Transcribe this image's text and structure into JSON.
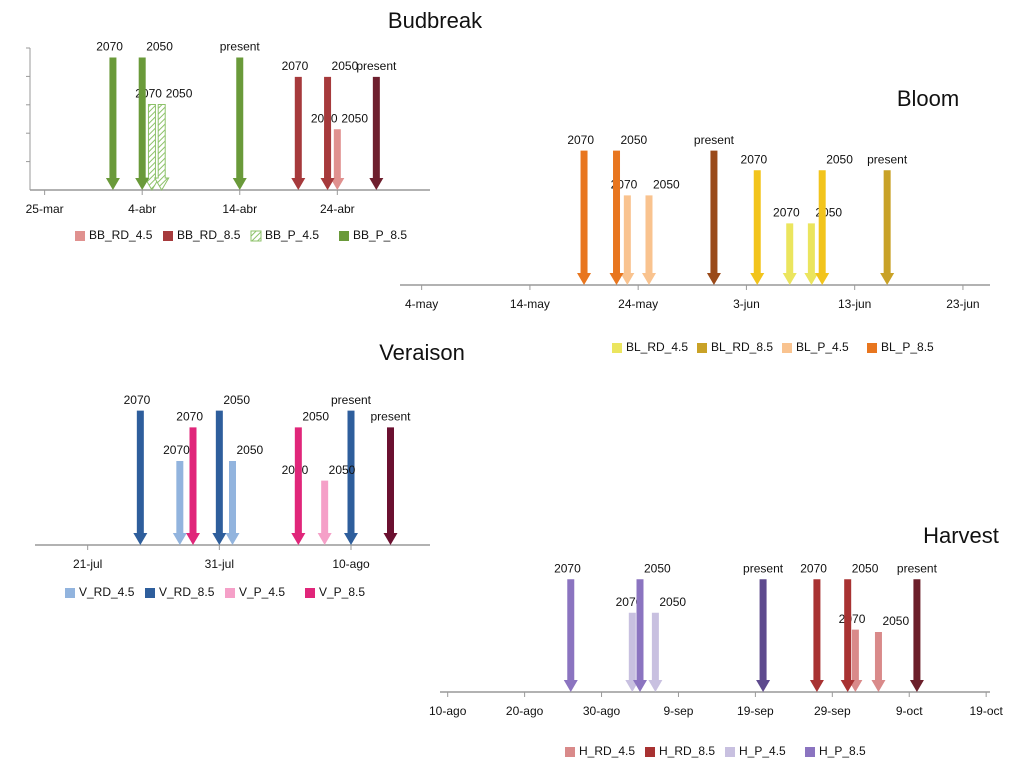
{
  "chart_data": [
    {
      "type": "arrow",
      "title": "Budbreak",
      "xlim": [
        82.5,
        123.5
      ],
      "ylim": [
        0,
        5
      ],
      "xticks": [
        {
          "value": 84,
          "label": "25-mar"
        },
        {
          "value": 94,
          "label": "4-abr"
        },
        {
          "value": 104,
          "label": "14-abr"
        },
        {
          "value": 114,
          "label": "24-abr"
        }
      ],
      "series": [
        {
          "name": "BB_RD_4.5",
          "color": "#e0918f",
          "x": [
            113,
            114
          ],
          "values": [
            2.2,
            2.2
          ],
          "labels": [
            "2070",
            "2050"
          ]
        },
        {
          "name": "BB_RD_8.5",
          "color": "#a63a3c",
          "x": [
            110,
            113,
            118
          ],
          "values": [
            4.1,
            4.1,
            4.1
          ],
          "labels": [
            "2070",
            "2050",
            "present"
          ],
          "colors": [
            "#a63a3c",
            "#a63a3c",
            "#6e1f2e"
          ]
        },
        {
          "name": "BB_P_4.5",
          "color": "#8dc26a",
          "pattern": "hatched",
          "x": [
            95,
            96
          ],
          "values": [
            3.1,
            3.1
          ],
          "labels": [
            "2070",
            "2050"
          ]
        },
        {
          "name": "BB_P_8.5",
          "color": "#6a9a3a",
          "x": [
            91,
            94,
            104
          ],
          "values": [
            4.8,
            4.8,
            4.8
          ],
          "labels": [
            "2070",
            "2050",
            "present"
          ]
        }
      ]
    },
    {
      "type": "arrow",
      "title": "Bloom",
      "xlim": [
        122,
        176.5
      ],
      "ylim": [
        0,
        5
      ],
      "xticks": [
        {
          "value": 124,
          "label": "4-may"
        },
        {
          "value": 134,
          "label": "14-may"
        },
        {
          "value": 144,
          "label": "24-may"
        },
        {
          "value": 154,
          "label": "3-jun"
        },
        {
          "value": 164,
          "label": "13-jun"
        },
        {
          "value": 174,
          "label": "23-jun"
        }
      ],
      "series": [
        {
          "name": "BL_RD_4.5",
          "color": "#ebe55e",
          "x": [
            158,
            160
          ],
          "values": [
            2.2,
            2.2
          ],
          "labels": [
            "2070",
            "2050"
          ]
        },
        {
          "name": "BL_RD_8.5",
          "color": "#c9a227",
          "x": [
            155,
            161,
            167
          ],
          "values": [
            4.1,
            4.1,
            4.1
          ],
          "labels": [
            "2070",
            "2050",
            "present"
          ],
          "colors": [
            "#f2c41c",
            "#f2c41c",
            "#c9a227"
          ]
        },
        {
          "name": "BL_P_4.5",
          "color": "#f9c38f",
          "x": [
            143,
            145
          ],
          "values": [
            3.2,
            3.2
          ],
          "labels": [
            "2070",
            "2050"
          ]
        },
        {
          "name": "BL_P_8.5",
          "color": "#e8761f",
          "x": [
            139,
            142,
            151
          ],
          "values": [
            4.8,
            4.8,
            4.8
          ],
          "labels": [
            "2070",
            "2050",
            "present"
          ],
          "colors": [
            "#e8761f",
            "#e8761f",
            "#9a4a1a"
          ]
        }
      ]
    },
    {
      "type": "arrow",
      "title": "Veraison",
      "xlim": [
        198,
        228
      ],
      "ylim": [
        0,
        5
      ],
      "xticks": [
        {
          "value": 202,
          "label": "21-jul"
        },
        {
          "value": 212,
          "label": "31-jul"
        },
        {
          "value": 222,
          "label": "10-ago"
        }
      ],
      "series": [
        {
          "name": "V_RD_4.5",
          "color": "#92b4de",
          "x": [
            209,
            213
          ],
          "values": [
            3.0,
            3.0
          ],
          "labels": [
            "2070",
            "2050"
          ]
        },
        {
          "name": "V_RD_8.5",
          "color": "#2e5e9c",
          "x": [
            206,
            212,
            222
          ],
          "values": [
            4.8,
            4.8,
            4.8
          ],
          "labels": [
            "2070",
            "2050",
            "present"
          ]
        },
        {
          "name": "V_P_4.5",
          "color": "#f5a0c8",
          "x": [
            218,
            220
          ],
          "values": [
            2.3,
            2.3
          ],
          "labels": [
            "2070",
            "2050"
          ]
        },
        {
          "name": "V_P_8.5",
          "color": "#e0267a",
          "x": [
            210,
            218,
            225
          ],
          "values": [
            4.2,
            4.2,
            4.2
          ],
          "labels": [
            "2070",
            "2050",
            "present"
          ],
          "colors": [
            "#e0267a",
            "#e0267a",
            "#6b1030"
          ]
        }
      ]
    },
    {
      "type": "arrow",
      "title": "Harvest",
      "xlim": [
        221,
        292.5
      ],
      "ylim": [
        0,
        5
      ],
      "xticks": [
        {
          "value": 222,
          "label": "10-ago"
        },
        {
          "value": 232,
          "label": "20-ago"
        },
        {
          "value": 242,
          "label": "30-ago"
        },
        {
          "value": 252,
          "label": "9-sep"
        },
        {
          "value": 262,
          "label": "19-sep"
        },
        {
          "value": 272,
          "label": "29-sep"
        },
        {
          "value": 282,
          "label": "9-oct"
        },
        {
          "value": 292,
          "label": "19-oct"
        }
      ],
      "series": [
        {
          "name": "H_RD_4.5",
          "color": "#d98a8a",
          "x": [
            275,
            278
          ],
          "values": [
            2.6,
            2.5
          ],
          "labels": [
            "2070",
            "2050"
          ]
        },
        {
          "name": "H_RD_8.5",
          "color": "#a83232",
          "x": [
            270,
            274,
            283
          ],
          "values": [
            4.7,
            4.7,
            4.7
          ],
          "labels": [
            "2070",
            "2050",
            "present"
          ],
          "colors": [
            "#a83232",
            "#a83232",
            "#6b1f2a"
          ]
        },
        {
          "name": "H_P_4.5",
          "color": "#c8c0e0",
          "x": [
            246,
            249
          ],
          "values": [
            3.3,
            3.3
          ],
          "labels": [
            "2070",
            "2050"
          ]
        },
        {
          "name": "H_P_8.5",
          "color": "#8b74c0",
          "x": [
            238,
            247,
            263
          ],
          "values": [
            4.7,
            4.7,
            4.7
          ],
          "labels": [
            "2070",
            "2050",
            "present"
          ],
          "colors": [
            "#8b74c0",
            "#8b74c0",
            "#5e4a8e"
          ]
        }
      ]
    }
  ]
}
